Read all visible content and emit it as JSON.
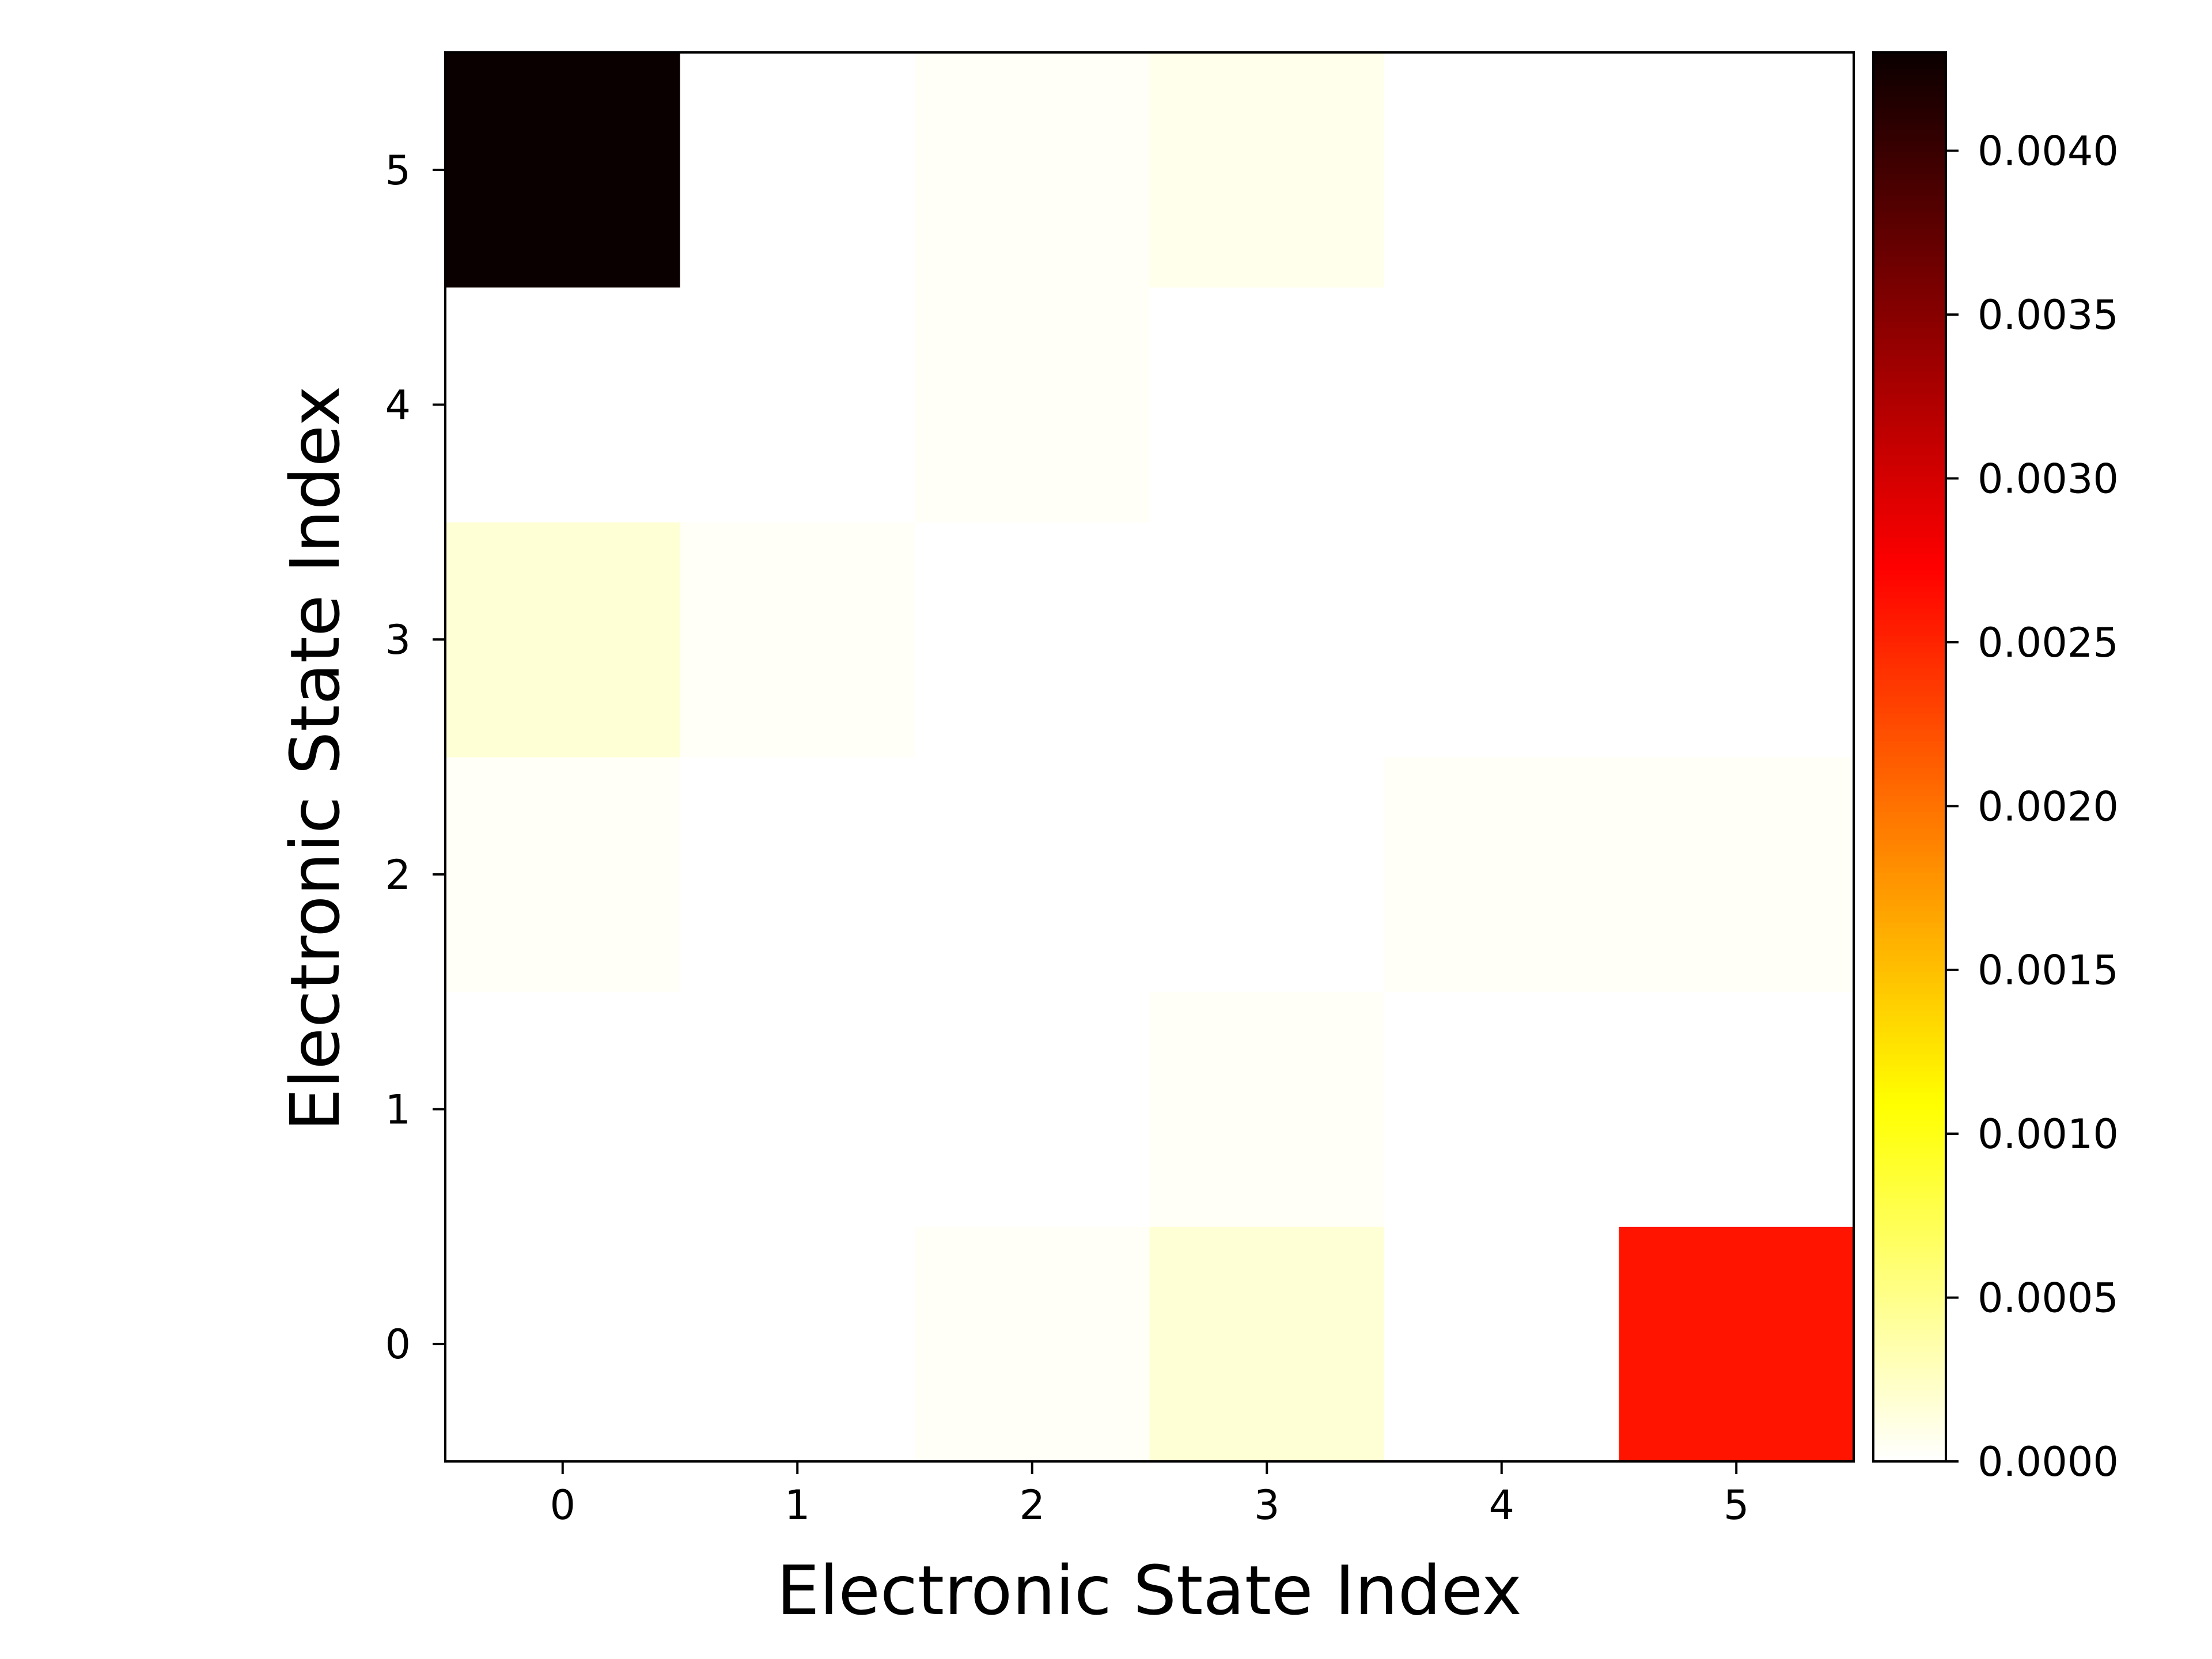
{
  "chart_data": {
    "type": "heatmap",
    "title": "",
    "xlabel": "Electronic State Index",
    "ylabel": "Electronic State Index",
    "x_categories": [
      "0",
      "1",
      "2",
      "3",
      "4",
      "5"
    ],
    "y_categories": [
      "0",
      "1",
      "2",
      "3",
      "4",
      "5"
    ],
    "values": [
      [
        0.0,
        0.0,
        3e-05,
        0.00018,
        0.0,
        0.0026
      ],
      [
        0.0,
        0.0,
        0.0,
        3e-05,
        0.0,
        0.0
      ],
      [
        3e-05,
        0.0,
        0.0,
        0.0,
        3e-05,
        3e-05
      ],
      [
        0.00018,
        3e-05,
        0.0,
        0.0,
        0.0,
        0.0
      ],
      [
        0.0,
        0.0,
        3e-05,
        0.0,
        0.0,
        0.0
      ],
      [
        0.0043,
        0.0,
        3e-05,
        8e-05,
        0.0,
        0.0
      ]
    ],
    "colormap": "hot_r",
    "colorbar": {
      "min": 0.0,
      "max": 0.0043,
      "ticks": [
        0.0,
        0.0005,
        0.001,
        0.0015,
        0.002,
        0.0025,
        0.003,
        0.0035,
        0.004
      ],
      "tick_labels": [
        "0.0000",
        "0.0005",
        "0.0010",
        "0.0015",
        "0.0020",
        "0.0025",
        "0.0030",
        "0.0035",
        "0.0040"
      ]
    },
    "grid": false,
    "legend": "none"
  }
}
